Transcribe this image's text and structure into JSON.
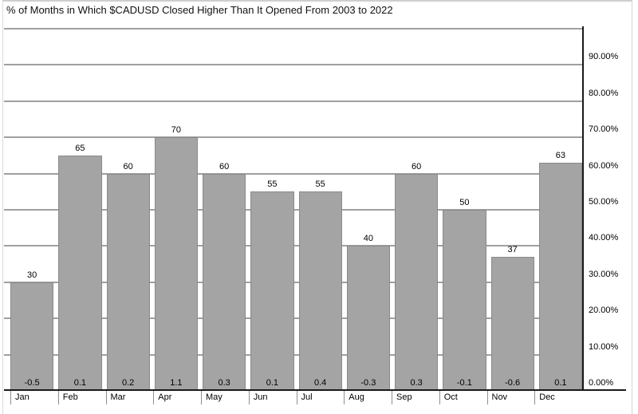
{
  "window": {
    "title": "% of Months in Which $CADUSD Closed Higher Than It Opened From 2003 to 2022"
  },
  "chart_data": {
    "type": "bar",
    "title": "% of Months in Which $CADUSD Closed Higher Than It Opened From 2003 to 2022",
    "categories": [
      "Jan",
      "Feb",
      "Mar",
      "Apr",
      "May",
      "Jun",
      "Jul",
      "Aug",
      "Sep",
      "Oct",
      "Nov",
      "Dec"
    ],
    "values": [
      30,
      65,
      60,
      70,
      60,
      55,
      55,
      40,
      60,
      50,
      37,
      63
    ],
    "bar_top_labels": [
      "30",
      "65",
      "60",
      "70",
      "60",
      "55",
      "55",
      "40",
      "60",
      "50",
      "37",
      "63"
    ],
    "bar_bottom_labels": [
      "-0.5",
      "0.1",
      "0.2",
      "1.1",
      "0.3",
      "0.1",
      "0.4",
      "-0.3",
      "0.3",
      "-0.1",
      "-0.6",
      "0.1"
    ],
    "xlabel": "",
    "ylabel": "",
    "ylim": [
      0,
      100
    ],
    "y_axis_side": "right",
    "y_ticks": [
      "0.00%",
      "10.00%",
      "20.00%",
      "30.00%",
      "40.00%",
      "50.00%",
      "60.00%",
      "70.00%",
      "80.00%",
      "90.00%"
    ],
    "y_tick_percents": [
      0,
      10,
      20,
      30,
      40,
      50,
      60,
      70,
      80,
      90
    ],
    "grid": "horizontal, every 10% up to 100%",
    "legend_position": "none",
    "colors": {
      "bar_fill": "#a4a4a4",
      "bar_border": "#8a8a8a",
      "gridline": "#a0a0a0",
      "axis": "#1a1a1a",
      "text": "#000000"
    }
  }
}
